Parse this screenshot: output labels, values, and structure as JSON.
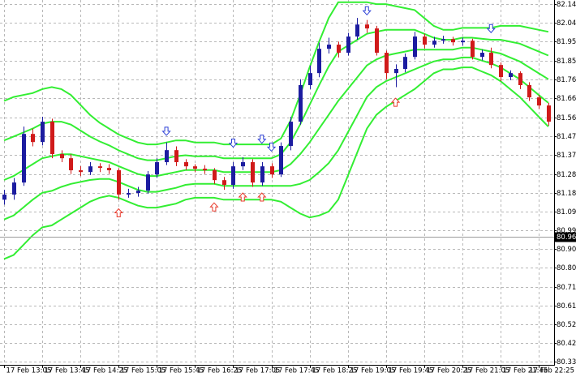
{
  "chart_data": {
    "type": "candlestick",
    "categories": [
      "17 Feb 13:05",
      null,
      null,
      null,
      "17 Feb 13:45",
      null,
      null,
      null,
      "17 Feb 14:25",
      null,
      null,
      null,
      "17 Feb 15:05",
      null,
      null,
      null,
      "17 Feb 15:45",
      null,
      null,
      null,
      "17 Feb 16:25",
      null,
      null,
      null,
      "17 Feb 17:05",
      null,
      null,
      null,
      "17 Feb 17:45",
      null,
      null,
      null,
      "17 Feb 18:25",
      null,
      null,
      null,
      "17 Feb 19:05",
      null,
      null,
      null,
      "17 Feb 19:45",
      null,
      null,
      null,
      "17 Feb 20:25",
      null,
      null,
      null,
      "17 Feb 21:05",
      null,
      null,
      null,
      "17 Feb 21:45",
      null,
      null,
      null,
      "17 Feb 22:25",
      null
    ],
    "open": [
      81.15,
      81.176,
      81.237,
      81.483,
      81.442,
      81.545,
      81.381,
      81.36,
      81.299,
      81.29,
      81.319,
      81.311,
      81.299,
      81.176,
      81.184,
      81.196,
      81.278,
      81.34,
      81.401,
      81.34,
      81.319,
      81.307,
      81.299,
      81.249,
      81.225,
      81.319,
      81.34,
      81.237,
      81.319,
      81.278,
      81.422,
      81.545,
      81.73,
      81.791,
      81.914,
      81.935,
      81.894,
      81.976,
      82.037,
      82.017,
      81.894,
      81.791,
      81.812,
      81.873,
      81.976,
      81.935,
      81.955,
      81.963,
      81.947,
      81.955,
      81.873,
      81.894,
      81.832,
      81.771,
      81.791,
      81.73,
      81.668,
      81.627
    ],
    "high": [
      81.2,
      81.26,
      81.52,
      81.51,
      81.57,
      81.56,
      81.4,
      81.38,
      81.32,
      81.34,
      81.335,
      81.33,
      81.31,
      81.205,
      81.215,
      81.295,
      81.36,
      81.44,
      81.42,
      81.355,
      81.33,
      81.325,
      81.31,
      81.265,
      81.34,
      81.365,
      81.355,
      81.34,
      81.335,
      81.44,
      81.57,
      81.76,
      81.83,
      81.945,
      81.97,
      81.95,
      81.995,
      82.07,
      82.06,
      82.03,
      81.905,
      81.835,
      81.89,
      82.0,
      81.99,
      81.975,
      81.98,
      81.975,
      81.97,
      81.965,
      81.91,
      81.92,
      81.845,
      81.805,
      81.8,
      81.745,
      81.68,
      81.64
    ],
    "low": [
      81.125,
      81.15,
      81.22,
      81.42,
      81.425,
      81.36,
      81.34,
      81.28,
      81.27,
      81.275,
      81.29,
      81.28,
      81.15,
      81.16,
      81.165,
      81.18,
      81.26,
      81.325,
      81.32,
      81.3,
      81.29,
      81.28,
      81.23,
      81.2,
      81.205,
      81.3,
      81.215,
      81.22,
      81.26,
      81.265,
      81.4,
      81.53,
      81.71,
      81.77,
      81.89,
      81.87,
      81.88,
      81.96,
      81.995,
      81.88,
      81.76,
      81.72,
      81.795,
      81.86,
      81.915,
      81.92,
      81.94,
      81.93,
      81.93,
      81.86,
      81.855,
      81.815,
      81.75,
      81.755,
      81.71,
      81.65,
      81.61,
      81.525
    ],
    "close": [
      81.176,
      81.237,
      81.483,
      81.442,
      81.545,
      81.381,
      81.36,
      81.299,
      81.29,
      81.319,
      81.311,
      81.299,
      81.176,
      81.184,
      81.196,
      81.278,
      81.34,
      81.401,
      81.34,
      81.319,
      81.307,
      81.299,
      81.249,
      81.225,
      81.319,
      81.34,
      81.237,
      81.319,
      81.278,
      81.422,
      81.545,
      81.73,
      81.791,
      81.914,
      81.935,
      81.894,
      81.976,
      82.037,
      82.017,
      81.894,
      81.791,
      81.812,
      81.873,
      81.976,
      81.935,
      81.955,
      81.963,
      81.947,
      81.955,
      81.873,
      81.894,
      81.832,
      81.771,
      81.791,
      81.73,
      81.668,
      81.627,
      81.545
    ],
    "up_color": "#1c1ca0",
    "down_color": "#d01a1a",
    "bands": [
      {
        "color": "#33ee33",
        "values": [
          81.65,
          81.67,
          81.68,
          81.69,
          81.71,
          81.72,
          81.71,
          81.68,
          81.63,
          81.58,
          81.54,
          81.51,
          81.48,
          81.46,
          81.44,
          81.43,
          81.43,
          81.44,
          81.45,
          81.45,
          81.44,
          81.44,
          81.44,
          81.43,
          81.43,
          81.43,
          81.43,
          81.43,
          81.43,
          81.46,
          81.55,
          81.68,
          81.82,
          81.95,
          82.07,
          82.15,
          82.15,
          82.15,
          82.15,
          82.14,
          82.14,
          82.13,
          82.12,
          82.11,
          82.07,
          82.03,
          82.01,
          82.01,
          82.02,
          82.02,
          82.02,
          82.02,
          82.03,
          82.03,
          82.03,
          82.02,
          82.01,
          82.0
        ]
      },
      {
        "color": "#33ee33",
        "values": [
          81.45,
          81.47,
          81.49,
          81.51,
          81.535,
          81.545,
          81.545,
          81.53,
          81.5,
          81.47,
          81.445,
          81.425,
          81.4,
          81.38,
          81.36,
          81.35,
          81.35,
          81.36,
          81.37,
          81.375,
          81.37,
          81.37,
          81.37,
          81.36,
          81.36,
          81.36,
          81.36,
          81.36,
          81.36,
          81.38,
          81.44,
          81.53,
          81.63,
          81.73,
          81.825,
          81.9,
          81.93,
          81.96,
          81.99,
          82.0,
          82.01,
          82.01,
          82.01,
          82.01,
          81.99,
          81.97,
          81.96,
          81.96,
          81.97,
          81.97,
          81.965,
          81.96,
          81.96,
          81.95,
          81.94,
          81.92,
          81.9,
          81.88
        ]
      },
      {
        "color": "#33ee33",
        "values": [
          81.25,
          81.27,
          81.3,
          81.33,
          81.36,
          81.37,
          81.38,
          81.38,
          81.37,
          81.36,
          81.35,
          81.34,
          81.32,
          81.3,
          81.28,
          81.27,
          81.27,
          81.28,
          81.29,
          81.3,
          81.3,
          81.3,
          81.3,
          81.29,
          81.29,
          81.29,
          81.29,
          81.29,
          81.29,
          81.3,
          81.33,
          81.38,
          81.44,
          81.51,
          81.58,
          81.65,
          81.71,
          81.77,
          81.83,
          81.86,
          81.88,
          81.89,
          81.9,
          81.91,
          81.91,
          81.91,
          81.91,
          81.91,
          81.92,
          81.92,
          81.91,
          81.9,
          81.89,
          81.87,
          81.85,
          81.82,
          81.79,
          81.76
        ]
      },
      {
        "color": "#33ee33",
        "values": [
          81.05,
          81.07,
          81.11,
          81.15,
          81.185,
          81.195,
          81.215,
          81.23,
          81.24,
          81.25,
          81.255,
          81.255,
          81.24,
          81.22,
          81.2,
          81.19,
          81.19,
          81.2,
          81.21,
          81.225,
          81.23,
          81.23,
          81.23,
          81.22,
          81.22,
          81.22,
          81.22,
          81.22,
          81.22,
          81.22,
          81.22,
          81.23,
          81.25,
          81.29,
          81.335,
          81.4,
          81.49,
          81.58,
          81.67,
          81.72,
          81.75,
          81.77,
          81.79,
          81.81,
          81.83,
          81.85,
          81.86,
          81.86,
          81.87,
          81.87,
          81.855,
          81.84,
          81.82,
          81.79,
          81.76,
          81.72,
          81.68,
          81.64
        ]
      },
      {
        "color": "#33ee33",
        "values": [
          80.85,
          80.87,
          80.92,
          80.97,
          81.01,
          81.02,
          81.05,
          81.08,
          81.11,
          81.14,
          81.16,
          81.17,
          81.16,
          81.14,
          81.12,
          81.11,
          81.11,
          81.12,
          81.13,
          81.15,
          81.16,
          81.16,
          81.16,
          81.15,
          81.15,
          81.15,
          81.15,
          81.15,
          81.15,
          81.14,
          81.11,
          81.08,
          81.06,
          81.07,
          81.09,
          81.15,
          81.27,
          81.39,
          81.51,
          81.58,
          81.62,
          81.65,
          81.68,
          81.71,
          81.75,
          81.79,
          81.81,
          81.81,
          81.82,
          81.82,
          81.8,
          81.78,
          81.75,
          81.71,
          81.67,
          81.62,
          81.57,
          81.52
        ]
      }
    ],
    "sell_signals": {
      "color": "#2b3fd6",
      "values": [
        null,
        null,
        null,
        null,
        null,
        null,
        null,
        null,
        null,
        null,
        null,
        null,
        null,
        null,
        null,
        null,
        null,
        81.48,
        null,
        null,
        null,
        null,
        null,
        null,
        81.42,
        null,
        null,
        81.44,
        81.4,
        null,
        null,
        null,
        null,
        null,
        null,
        null,
        null,
        null,
        82.09,
        null,
        null,
        null,
        null,
        null,
        null,
        null,
        null,
        null,
        null,
        null,
        null,
        82.0,
        null,
        null,
        null,
        null,
        null,
        null
      ]
    },
    "buy_signals": {
      "color": "#e8392b",
      "values": [
        null,
        null,
        null,
        null,
        null,
        null,
        null,
        null,
        null,
        null,
        null,
        null,
        81.1,
        null,
        null,
        null,
        null,
        null,
        null,
        null,
        null,
        null,
        81.13,
        null,
        null,
        81.18,
        null,
        81.18,
        null,
        null,
        null,
        null,
        null,
        null,
        null,
        null,
        null,
        null,
        null,
        null,
        null,
        81.66,
        null,
        null,
        null,
        null,
        null,
        null,
        null,
        null,
        null,
        null,
        null,
        null,
        null,
        null,
        null,
        null
      ]
    },
    "current_price": 80.961,
    "ylim": [
      80.314,
      82.161
    ],
    "yticks": [
      {
        "value": 82.14,
        "label": "82.140"
      },
      82.045,
      {
        "value": 81.95,
        "label": "81.950"
      },
      81.855,
      {
        "value": 81.76,
        "label": "81.760"
      },
      81.665,
      81.565,
      {
        "value": 81.47,
        "label": "81.470"
      },
      81.375,
      {
        "value": 81.28,
        "label": "81.280"
      },
      81.185,
      {
        "value": 81.09,
        "label": "81.090"
      },
      80.995,
      {
        "value": 80.9,
        "label": "80.900"
      },
      80.805,
      {
        "value": 80.71,
        "label": "80.710"
      },
      80.615,
      {
        "value": 80.52,
        "label": "80.520"
      },
      80.425,
      {
        "value": 80.33,
        "label": "80.330"
      }
    ],
    "grid": true
  }
}
